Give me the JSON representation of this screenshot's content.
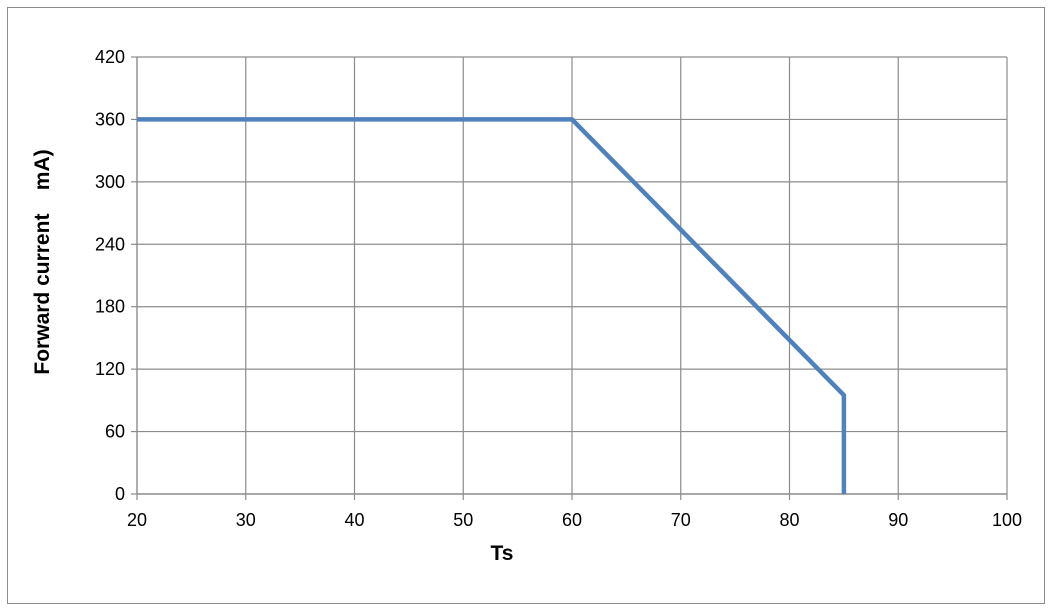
{
  "chart_data": {
    "type": "line",
    "title": "",
    "xlabel": "Ts",
    "ylabel": "Forward current    mA)",
    "xlim": [
      20,
      100
    ],
    "ylim": [
      0,
      420
    ],
    "xticks": [
      20,
      30,
      40,
      50,
      60,
      70,
      80,
      90,
      100
    ],
    "yticks": [
      0,
      60,
      120,
      180,
      240,
      300,
      360,
      420
    ],
    "grid": true,
    "legend": "none",
    "series": [
      {
        "x": [
          20,
          60,
          85,
          85
        ],
        "y": [
          360,
          360,
          95,
          0
        ],
        "color": "#4f81bd"
      }
    ],
    "colors": {
      "grid": "#8c8c8c",
      "axis": "#8c8c8c",
      "line": "#4f81bd",
      "frame": "#8c8c8c"
    }
  }
}
